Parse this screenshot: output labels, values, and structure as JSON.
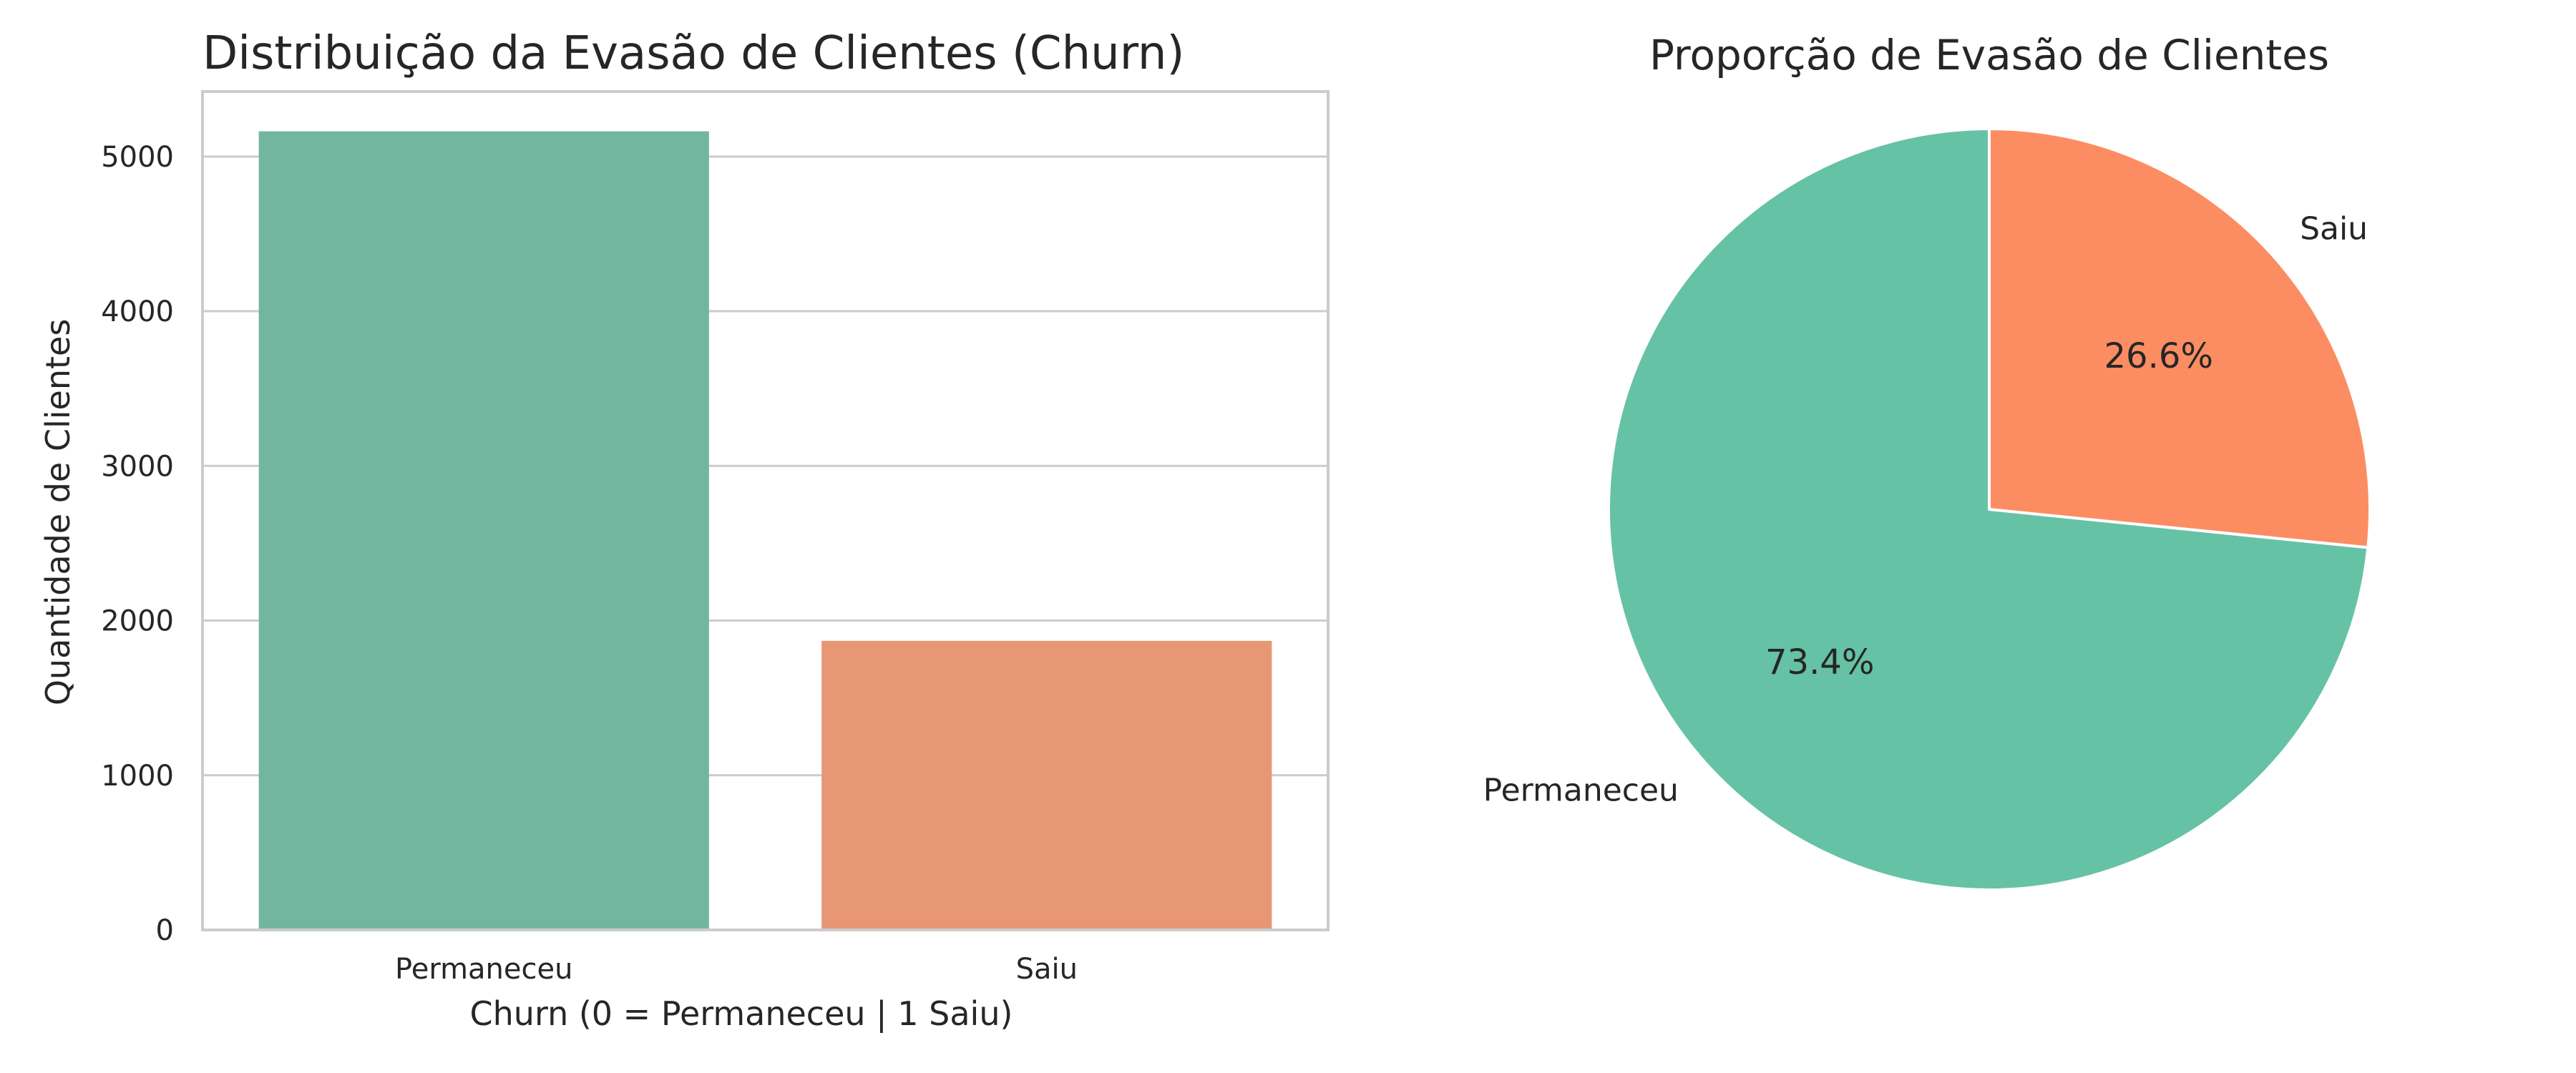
{
  "chart_data": [
    {
      "type": "bar",
      "title": "Distribuição da Evasão de Clientes (Churn)",
      "xlabel": "Churn (0 = Permaneceu | 1 Saiu)",
      "ylabel": "Quantidade de Clientes",
      "categories": [
        "Permaneceu",
        "Saiu"
      ],
      "values": [
        5163,
        1869
      ],
      "ylim": [
        0,
        5420
      ],
      "yticks": [
        0,
        1000,
        2000,
        3000,
        4000,
        5000
      ],
      "grid": true,
      "colors": [
        "#73b6a0",
        "#e89775"
      ]
    },
    {
      "type": "pie",
      "title": "Proporção de Evasão de Clientes",
      "labels": [
        "Permaneceu",
        "Saiu"
      ],
      "values": [
        73.4,
        26.6
      ],
      "percent_labels": [
        "73.4%",
        "26.6%"
      ],
      "start_angle_deg": 90,
      "direction": "counterclockwise",
      "colors": [
        "#66c2a5",
        "#fc8d62"
      ]
    }
  ]
}
